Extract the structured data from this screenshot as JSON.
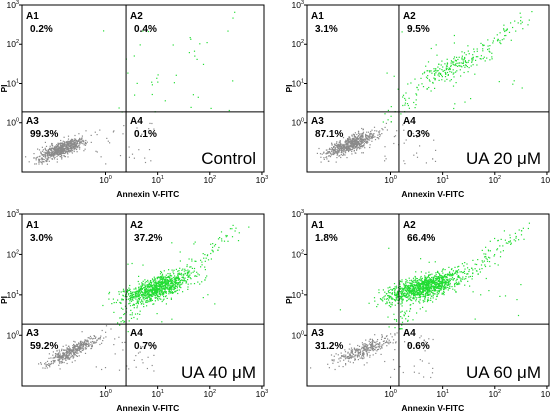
{
  "chart_data": [
    {
      "type": "scatter",
      "title": "Control",
      "xlabel": "Annexin V-FITC",
      "ylabel": "PI",
      "x_ticks": [
        "10^0",
        "10^1",
        "10^2",
        "10^3"
      ],
      "y_ticks": [
        "10^0",
        "10^1",
        "10^2",
        "10^3"
      ],
      "xscale": "log",
      "yscale": "log",
      "quadrants": [
        {
          "name": "A1",
          "value": "0.2%"
        },
        {
          "name": "A2",
          "value": "0.4%"
        },
        {
          "name": "A3",
          "value": "99.3%"
        },
        {
          "name": "A4",
          "value": "0.1%"
        }
      ]
    },
    {
      "type": "scatter",
      "title": "UA 20 μM",
      "xlabel": "Annexin V-FITC",
      "ylabel": "PI",
      "x_ticks": [
        "10^0",
        "10^1",
        "10^2",
        "10^3"
      ],
      "y_ticks": [
        "10^0",
        "10^1",
        "10^2",
        "10^3"
      ],
      "xscale": "log",
      "yscale": "log",
      "quadrants": [
        {
          "name": "A1",
          "value": "3.1%"
        },
        {
          "name": "A2",
          "value": "9.5%"
        },
        {
          "name": "A3",
          "value": "87.1%"
        },
        {
          "name": "A4",
          "value": "0.3%"
        }
      ]
    },
    {
      "type": "scatter",
      "title": "UA 40 μM",
      "xlabel": "Annexin V-FITC",
      "ylabel": "PI",
      "x_ticks": [
        "10^0",
        "10^1",
        "10^2",
        "10^3"
      ],
      "y_ticks": [
        "10^0",
        "10^1",
        "10^2",
        "10^3"
      ],
      "xscale": "log",
      "yscale": "log",
      "quadrants": [
        {
          "name": "A1",
          "value": "3.0%"
        },
        {
          "name": "A2",
          "value": "37.2%"
        },
        {
          "name": "A3",
          "value": "59.2%"
        },
        {
          "name": "A4",
          "value": "0.7%"
        }
      ]
    },
    {
      "type": "scatter",
      "title": "UA 60 μM",
      "xlabel": "Annexin V-FITC",
      "ylabel": "PI",
      "x_ticks": [
        "10^0",
        "10^1",
        "10^2",
        "10^3"
      ],
      "y_ticks": [
        "10^0",
        "10^1",
        "10^2",
        "10^3"
      ],
      "xscale": "log",
      "yscale": "log",
      "quadrants": [
        {
          "name": "A1",
          "value": "1.8%"
        },
        {
          "name": "A2",
          "value": "66.4%"
        },
        {
          "name": "A3",
          "value": "31.2%"
        },
        {
          "name": "A4",
          "value": "0.6%"
        }
      ]
    }
  ],
  "colors": {
    "live_cells": "#8a8a8a",
    "apoptotic_cells": "#22dd33",
    "frame": "#000000"
  }
}
